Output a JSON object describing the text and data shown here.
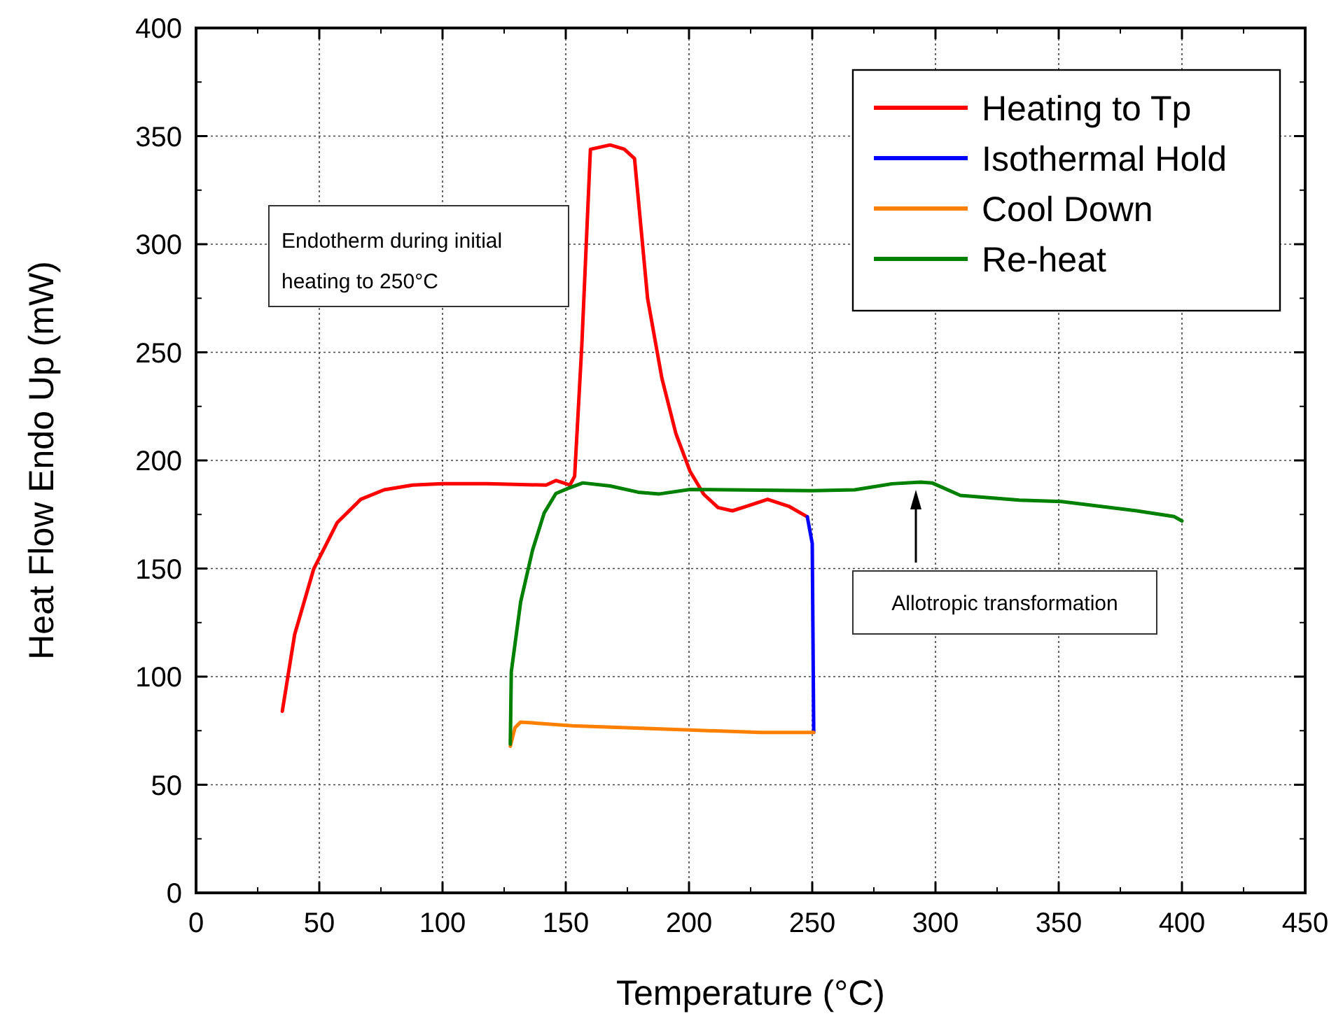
{
  "chart_data": {
    "type": "line",
    "xlabel": "Temperature (°C)",
    "ylabel": "Heat Flow Endo Up (mW)",
    "xlim": [
      0,
      450
    ],
    "ylim": [
      0,
      400
    ],
    "xticks": [
      0,
      50,
      100,
      150,
      200,
      250,
      300,
      350,
      400,
      450
    ],
    "yticks": [
      0,
      50,
      100,
      150,
      200,
      250,
      300,
      350,
      400
    ],
    "grid": true,
    "legend": "top right",
    "line_style": "solid",
    "marker": "none",
    "annotations": [
      "Endotherm during initial heating to 250°C",
      "Allotropic transformation"
    ],
    "series": [
      {
        "name": "Heating to Tp",
        "color": "#ff0000",
        "x": [
          35,
          40,
          47.7,
          57.3,
          66.8,
          76.3,
          87.8,
          100,
          118,
          142,
          146,
          151.7,
          153.6,
          156.5,
          160,
          168,
          173.7,
          177.9,
          183.2,
          189,
          194.7,
          200.4,
          206,
          211.8,
          217.6,
          223.3,
          231.9,
          240.5,
          248
        ],
        "values": [
          84,
          119.5,
          149.7,
          171.3,
          182,
          186.4,
          188.6,
          189.2,
          189.2,
          188.6,
          190.7,
          188.6,
          192.7,
          253,
          343.9,
          345.9,
          344,
          339.6,
          274.9,
          238,
          212.3,
          195,
          184.3,
          178.2,
          176.7,
          178.8,
          182,
          178.8,
          173.9
        ]
      },
      {
        "name": "Isothermal Hold",
        "color": "#0000ff",
        "x": [
          248,
          250,
          250.6
        ],
        "values": [
          173.9,
          161.6,
          74.2
        ]
      },
      {
        "name": "Cool Down",
        "color": "#ff8000",
        "x": [
          127.5,
          129.4,
          131.7,
          152.7,
          200.4,
          229,
          250.6
        ],
        "values": [
          67.8,
          76.4,
          79,
          77.3,
          75.3,
          74.2,
          74.2
        ]
      },
      {
        "name": "Re-heat",
        "color": "#008000",
        "x": [
          127.5,
          127.9,
          131.7,
          136.5,
          141.2,
          146,
          150.8,
          156.9,
          168,
          179.4,
          188,
          200.4,
          250,
          267.2,
          282.4,
          293.9,
          298.6,
          310.1,
          334,
          351.1,
          381.6,
          396.9,
          400
        ],
        "values": [
          68.8,
          102.3,
          134.6,
          158.4,
          175.6,
          184.7,
          187,
          189.6,
          188.2,
          185.3,
          184.5,
          186.6,
          186,
          186.4,
          189.2,
          190,
          189.6,
          183.8,
          181.6,
          181,
          176.7,
          174,
          172
        ]
      }
    ]
  }
}
